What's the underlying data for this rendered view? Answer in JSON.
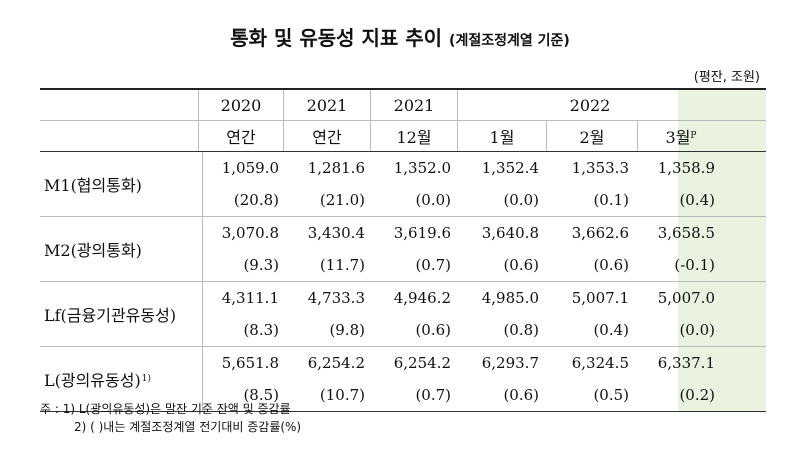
{
  "title": "통화 및 유동성 지표 추이",
  "subtitle": "(계절조정계열 기준)",
  "unit": "(평잔, 조원)",
  "header": {
    "years": [
      "2020",
      "2021",
      "2021",
      "2022"
    ],
    "periods": [
      "연간",
      "연간",
      "12월",
      "1월",
      "2월",
      "3월"
    ],
    "prelim_mark": "P"
  },
  "rows": [
    {
      "label": "M1(협의통화)",
      "sup": "",
      "values": [
        "1,059.0",
        "1,281.6",
        "1,352.0",
        "1,352.4",
        "1,353.3",
        "1,358.9"
      ],
      "changes": [
        "(20.8)",
        "(21.0)",
        "(0.0)",
        "(0.0)",
        "(0.1)",
        "(0.4)"
      ]
    },
    {
      "label": "M2(광의통화)",
      "sup": "",
      "values": [
        "3,070.8",
        "3,430.4",
        "3,619.6",
        "3,640.8",
        "3,662.6",
        "3,658.5"
      ],
      "changes": [
        "(9.3)",
        "(11.7)",
        "(0.7)",
        "(0.6)",
        "(0.6)",
        "(-0.1)"
      ]
    },
    {
      "label": "Lf(금융기관유동성)",
      "sup": "",
      "values": [
        "4,311.1",
        "4,733.3",
        "4,946.2",
        "4,985.0",
        "5,007.1",
        "5,007.0"
      ],
      "changes": [
        "(8.3)",
        "(9.8)",
        "(0.6)",
        "(0.8)",
        "(0.4)",
        "(0.0)"
      ]
    },
    {
      "label": "L(광의유동성)",
      "sup": "1)",
      "values": [
        "5,651.8",
        "6,254.2",
        "6,254.2",
        "6,293.7",
        "6,324.5",
        "6,337.1"
      ],
      "changes": [
        "(8.5)",
        "(10.7)",
        "(0.7)",
        "(0.6)",
        "(0.5)",
        "(0.2)"
      ]
    }
  ],
  "notes": {
    "prefix": "주 :",
    "note1": "1) L(광의유동성)은 말잔 기준 잔액 및 증감률",
    "note2": "2) (    )내는 계절조정계열 전기대비 증감률(%)"
  },
  "colors": {
    "highlight": "#eaf3e0"
  }
}
